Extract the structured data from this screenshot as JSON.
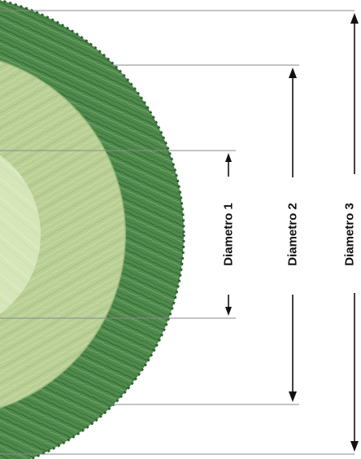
{
  "diagram": {
    "labels": {
      "d1": "Diametro 1",
      "d2": "Diametro 2",
      "d3": "Diametro 3"
    },
    "colors": {
      "outer_ring": "#4f8a4c",
      "outer_ring_dark": "#2f6131",
      "middle_ring": "#b9cf95",
      "inner_core": "#d7e6b9",
      "guide_line": "#8a8a8a",
      "dimension_line": "#111111"
    },
    "icons": {
      "bale": "hay-bale-cross-section-icon",
      "arrow": "arrowhead-icon"
    }
  }
}
